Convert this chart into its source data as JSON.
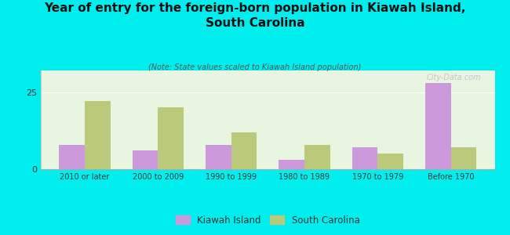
{
  "title": "Year of entry for the foreign-born population in Kiawah Island,\nSouth Carolina",
  "subtitle": "(Note: State values scaled to Kiawah Island population)",
  "categories": [
    "2010 or later",
    "2000 to 2009",
    "1990 to 1999",
    "1980 to 1989",
    "1970 to 1979",
    "Before 1970"
  ],
  "kiawah_values": [
    8,
    6,
    8,
    3,
    7,
    28
  ],
  "sc_values": [
    22,
    20,
    12,
    8,
    5,
    7
  ],
  "kiawah_color": "#cc99dd",
  "sc_color": "#bbc97a",
  "bg_color": "#00eeee",
  "plot_bg": "#e8f5e0",
  "ylim": [
    0,
    32
  ],
  "yticks": [
    0,
    25
  ],
  "bar_width": 0.35,
  "watermark": "City-Data.com",
  "legend_kiawah": "Kiawah Island",
  "legend_sc": "South Carolina"
}
